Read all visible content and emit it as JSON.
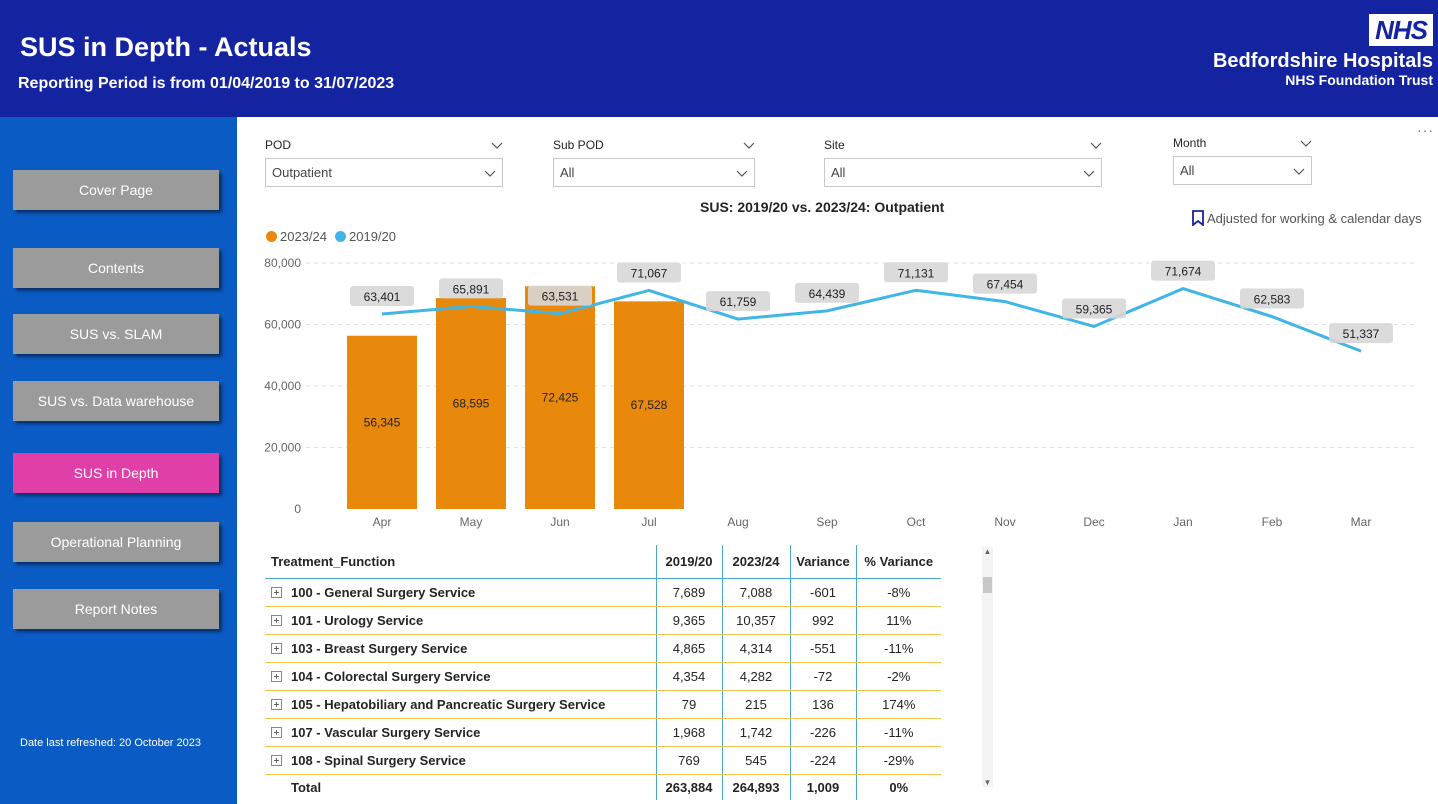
{
  "header": {
    "title": "SUS in Depth - Actuals",
    "subtitle": "Reporting Period is from 01/04/2019 to 31/07/2023",
    "logo_badge": "NHS",
    "logo_org": "Bedfordshire Hospitals",
    "logo_trust": "NHS Foundation Trust"
  },
  "sidebar": {
    "items": [
      {
        "label": "Cover Page"
      },
      {
        "label": "Contents"
      },
      {
        "label": "SUS vs. SLAM"
      },
      {
        "label": "SUS vs. Data warehouse"
      },
      {
        "label": "SUS in Depth",
        "active": true
      },
      {
        "label": "Operational Planning"
      },
      {
        "label": "Report Notes"
      }
    ],
    "refreshed": "Date last refreshed: 20 October 2023"
  },
  "filters": {
    "pod": {
      "label": "POD",
      "value": "Outpatient"
    },
    "subpod": {
      "label": "Sub POD",
      "value": "All"
    },
    "site": {
      "label": "Site",
      "value": "All"
    },
    "month": {
      "label": "Month",
      "value": "All"
    }
  },
  "chart_data": {
    "type": "bar",
    "title": "SUS: 2019/20 vs. 2023/24: Outpatient",
    "annotation": "Adjusted for working & calendar days",
    "categories": [
      "Apr",
      "May",
      "Jun",
      "Jul",
      "Aug",
      "Sep",
      "Oct",
      "Nov",
      "Dec",
      "Jan",
      "Feb",
      "Mar"
    ],
    "series": [
      {
        "name": "2023/24",
        "type": "bar",
        "color": "#e8890c",
        "values": [
          56345,
          68595,
          72425,
          67528,
          null,
          null,
          null,
          null,
          null,
          null,
          null,
          null
        ]
      },
      {
        "name": "2019/20",
        "type": "line",
        "color": "#41b6e6",
        "values": [
          63401,
          65891,
          63531,
          71067,
          61759,
          64439,
          71131,
          67454,
          59365,
          71674,
          62583,
          51337
        ]
      }
    ],
    "y_ticks": [
      "0",
      "20,000",
      "40,000",
      "60,000",
      "80,000"
    ],
    "bar_labels": [
      "56,345",
      "68,595",
      "72,425",
      "67,528"
    ],
    "line_labels": [
      "63,401",
      "65,891",
      "63,531",
      "71,067",
      "61,759",
      "64,439",
      "71,131",
      "67,454",
      "59,365",
      "71,674",
      "62,583",
      "51,337"
    ],
    "ylim": [
      0,
      80000
    ],
    "grid": true,
    "legend": "top-left"
  },
  "table": {
    "columns": [
      "Treatment_Function",
      "2019/20",
      "2023/24",
      "Variance",
      "% Variance"
    ],
    "rows": [
      [
        "100 - General Surgery Service",
        "7,689",
        "7,088",
        "-601",
        "-8%"
      ],
      [
        "101 - Urology Service",
        "9,365",
        "10,357",
        "992",
        "11%"
      ],
      [
        "103 - Breast Surgery Service",
        "4,865",
        "4,314",
        "-551",
        "-11%"
      ],
      [
        "104 - Colorectal Surgery Service",
        "4,354",
        "4,282",
        "-72",
        "-2%"
      ],
      [
        "105 - Hepatobiliary and Pancreatic Surgery Service",
        "79",
        "215",
        "136",
        "174%"
      ],
      [
        "107 - Vascular Surgery Service",
        "1,968",
        "1,742",
        "-226",
        "-11%"
      ],
      [
        "108 - Spinal Surgery Service",
        "769",
        "545",
        "-224",
        "-29%"
      ]
    ],
    "total": [
      "Total",
      "263,884",
      "264,893",
      "1,009",
      "0%"
    ]
  }
}
